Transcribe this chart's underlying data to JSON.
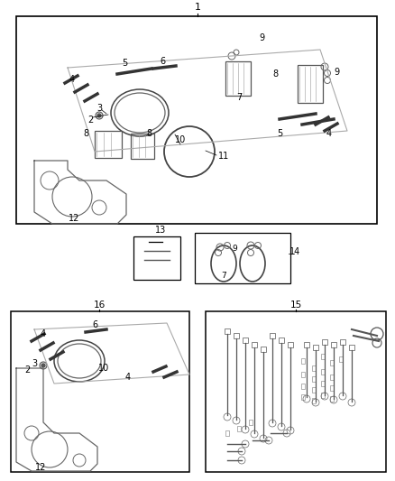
{
  "bg": "#ffffff",
  "lc": "#000000",
  "gray": "#555555",
  "lgray": "#888888",
  "dgray": "#333333"
}
